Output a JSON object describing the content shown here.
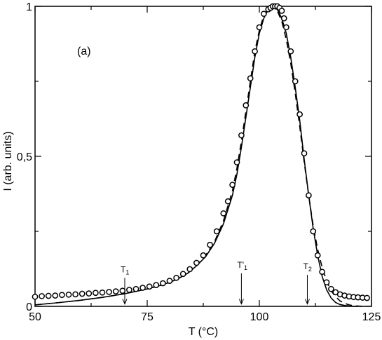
{
  "chart_data": {
    "type": "line",
    "panel_label": "(a)",
    "xlabel": "T (°C)",
    "ylabel": "I (arb. units)",
    "xlim": [
      50,
      125
    ],
    "ylim": [
      0,
      1.0
    ],
    "x_ticks": [
      50,
      75,
      100,
      125
    ],
    "x_tick_labels": [
      "50",
      "75",
      "100",
      "125"
    ],
    "y_ticks": [
      0,
      0.5,
      1.0
    ],
    "y_tick_labels": [
      "0",
      "0,5",
      "1"
    ],
    "grid": false,
    "series": [
      {
        "style": "open circles",
        "x": [
          50.0,
          51.5,
          53.0,
          54.5,
          56.0,
          57.5,
          59.0,
          60.5,
          62.0,
          63.5,
          65.0,
          66.5,
          68.0,
          69.5,
          71.0,
          72.5,
          74.0,
          75.5,
          77.0,
          78.5,
          80.0,
          81.5,
          83.0,
          84.5,
          86.0,
          87.5,
          89.0,
          90.5,
          92.0,
          93.0,
          94.0,
          95.0,
          96.0,
          97.0,
          98.0,
          99.0,
          100.0,
          101.0,
          102.0,
          102.5,
          103.0,
          103.5,
          104.0,
          104.5,
          105.0,
          105.5,
          106.0,
          107.0,
          108.0,
          109.0,
          110.0,
          111.0,
          112.0,
          113.0,
          114.0,
          115.0,
          116.0,
          117.0,
          118.0,
          119.0,
          120.0,
          121.0,
          122.0,
          123.0,
          124.0
        ],
        "y": [
          0.032,
          0.034,
          0.035,
          0.036,
          0.038,
          0.039,
          0.04,
          0.042,
          0.043,
          0.045,
          0.046,
          0.048,
          0.05,
          0.052,
          0.055,
          0.058,
          0.062,
          0.066,
          0.071,
          0.077,
          0.085,
          0.095,
          0.108,
          0.124,
          0.145,
          0.17,
          0.205,
          0.25,
          0.31,
          0.35,
          0.405,
          0.48,
          0.57,
          0.67,
          0.76,
          0.85,
          0.93,
          0.975,
          0.99,
          0.995,
          1.0,
          1.0,
          1.0,
          0.995,
          0.985,
          0.96,
          0.93,
          0.85,
          0.75,
          0.64,
          0.51,
          0.37,
          0.25,
          0.17,
          0.115,
          0.08,
          0.058,
          0.047,
          0.04,
          0.036,
          0.033,
          0.031,
          0.03,
          0.029,
          0.028
        ]
      },
      {
        "style": "solid line",
        "x": [
          50,
          55,
          60,
          65,
          70,
          75,
          78,
          80,
          82,
          84,
          86,
          88,
          90,
          92,
          94,
          95,
          96,
          97,
          98,
          99,
          100,
          101,
          102,
          103,
          104,
          105,
          106,
          107,
          108,
          109,
          110,
          111,
          112,
          113,
          114,
          115,
          116,
          117,
          118,
          119,
          120,
          121,
          122
        ],
        "y": [
          0.005,
          0.012,
          0.02,
          0.03,
          0.042,
          0.058,
          0.07,
          0.08,
          0.093,
          0.11,
          0.135,
          0.165,
          0.21,
          0.275,
          0.37,
          0.44,
          0.53,
          0.63,
          0.73,
          0.83,
          0.91,
          0.96,
          0.99,
          0.995,
          0.99,
          0.96,
          0.91,
          0.83,
          0.73,
          0.62,
          0.49,
          0.37,
          0.26,
          0.17,
          0.1,
          0.055,
          0.028,
          0.013,
          0.006,
          0.003,
          0.001,
          0.0,
          0.0
        ]
      },
      {
        "style": "dashed line",
        "x": [
          50,
          55,
          60,
          65,
          70,
          75,
          78,
          80,
          82,
          84,
          86,
          88,
          90,
          92,
          94,
          95,
          96,
          97,
          98,
          99,
          100,
          101,
          102,
          103,
          104,
          105,
          106,
          107,
          108,
          109,
          110,
          111,
          112,
          113,
          114,
          115,
          116,
          117,
          118,
          119,
          120,
          121,
          122,
          123
        ],
        "y": [
          0.005,
          0.012,
          0.02,
          0.03,
          0.042,
          0.058,
          0.07,
          0.08,
          0.093,
          0.11,
          0.135,
          0.17,
          0.215,
          0.285,
          0.385,
          0.46,
          0.55,
          0.65,
          0.75,
          0.85,
          0.92,
          0.97,
          0.995,
          1.0,
          0.985,
          0.95,
          0.89,
          0.81,
          0.71,
          0.6,
          0.48,
          0.37,
          0.27,
          0.19,
          0.13,
          0.085,
          0.052,
          0.032,
          0.018,
          0.01,
          0.005,
          0.002,
          0.001,
          0.0
        ]
      }
    ],
    "annotations": [
      {
        "name": "t1-marker",
        "label": "T",
        "sub": "1",
        "x": 70.0,
        "arrow_top_y": 0.095,
        "arrow_bottom_y": 0.008
      },
      {
        "name": "t1-prime-marker",
        "label": "T'",
        "sub": "1",
        "x": 96.0,
        "arrow_top_y": 0.11,
        "arrow_bottom_y": 0.008
      },
      {
        "name": "t2-marker",
        "label": "T",
        "sub": "2",
        "x": 110.7,
        "arrow_top_y": 0.105,
        "arrow_bottom_y": 0.008
      }
    ]
  }
}
